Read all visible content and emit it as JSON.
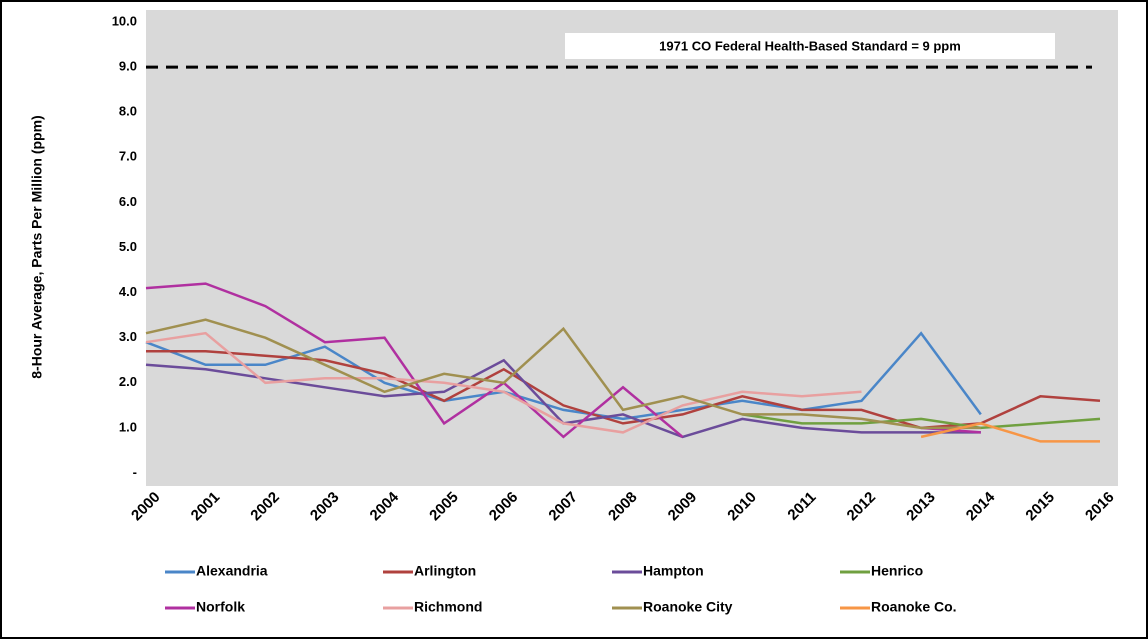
{
  "chart_data": {
    "type": "line",
    "y_label": "8-Hour Average, Parts Per Million (ppm)",
    "annotation": "1971 CO Federal Health-Based Standard = 9 ppm",
    "standard_line": 9,
    "categories": [
      "2000",
      "2001",
      "2002",
      "2003",
      "2004",
      "2005",
      "2006",
      "2007",
      "2008",
      "2009",
      "2010",
      "2011",
      "2012",
      "2013",
      "2014",
      "2015",
      "2016"
    ],
    "ylim": [
      0,
      10
    ],
    "yticks": [
      {
        "value": 0,
        "label": "-"
      },
      {
        "value": 1,
        "label": "1.0"
      },
      {
        "value": 2,
        "label": "2.0"
      },
      {
        "value": 3,
        "label": "3.0"
      },
      {
        "value": 4,
        "label": "4.0"
      },
      {
        "value": 5,
        "label": "5.0"
      },
      {
        "value": 6,
        "label": "6.0"
      },
      {
        "value": 7,
        "label": "7.0"
      },
      {
        "value": 8,
        "label": "8.0"
      },
      {
        "value": 9,
        "label": "9.0"
      },
      {
        "value": 10,
        "label": "10.0"
      }
    ],
    "grid": true,
    "series": [
      {
        "name": "Alexandria",
        "color": "#4a86c8",
        "values": [
          2.9,
          2.4,
          2.4,
          2.8,
          2.0,
          1.6,
          1.8,
          1.4,
          1.2,
          1.4,
          1.6,
          1.4,
          1.6,
          3.1,
          1.3,
          null,
          null
        ]
      },
      {
        "name": "Arlington",
        "color": "#b0413e",
        "values": [
          2.7,
          2.7,
          2.6,
          2.5,
          2.2,
          1.6,
          2.3,
          1.5,
          1.1,
          1.3,
          1.7,
          1.4,
          1.4,
          1.0,
          1.1,
          1.7,
          1.6
        ]
      },
      {
        "name": "Hampton",
        "color": "#6b4c9a",
        "values": [
          2.4,
          2.3,
          2.1,
          1.9,
          1.7,
          1.8,
          2.5,
          1.1,
          1.3,
          0.8,
          1.2,
          1.0,
          0.9,
          0.9,
          0.9,
          null,
          null
        ]
      },
      {
        "name": "Henrico",
        "color": "#70a040",
        "values": [
          null,
          null,
          null,
          null,
          null,
          null,
          null,
          null,
          null,
          null,
          1.3,
          1.1,
          1.1,
          1.2,
          1.0,
          1.1,
          1.2
        ]
      },
      {
        "name": "Norfolk",
        "color": "#b030a0",
        "values": [
          4.1,
          4.2,
          3.7,
          2.9,
          3.0,
          1.1,
          2.0,
          0.8,
          1.9,
          0.8,
          null,
          null,
          null,
          1.0,
          0.9,
          null,
          null
        ]
      },
      {
        "name": "Richmond",
        "color": "#e8a0a0",
        "values": [
          2.9,
          3.1,
          2.0,
          2.1,
          2.1,
          2.0,
          1.8,
          1.1,
          0.9,
          1.5,
          1.8,
          1.7,
          1.8,
          null,
          null,
          null,
          null
        ]
      },
      {
        "name": "Roanoke City",
        "color": "#a09050",
        "values": [
          3.1,
          3.4,
          3.0,
          2.4,
          1.8,
          2.2,
          2.0,
          3.2,
          1.4,
          1.7,
          1.3,
          1.3,
          1.2,
          1.0,
          1.0,
          null,
          null
        ]
      },
      {
        "name": "Roanoke Co.",
        "color": "#f79646",
        "values": [
          null,
          null,
          null,
          null,
          null,
          null,
          null,
          null,
          null,
          null,
          null,
          null,
          null,
          0.8,
          1.1,
          0.7,
          0.7
        ]
      }
    ]
  }
}
